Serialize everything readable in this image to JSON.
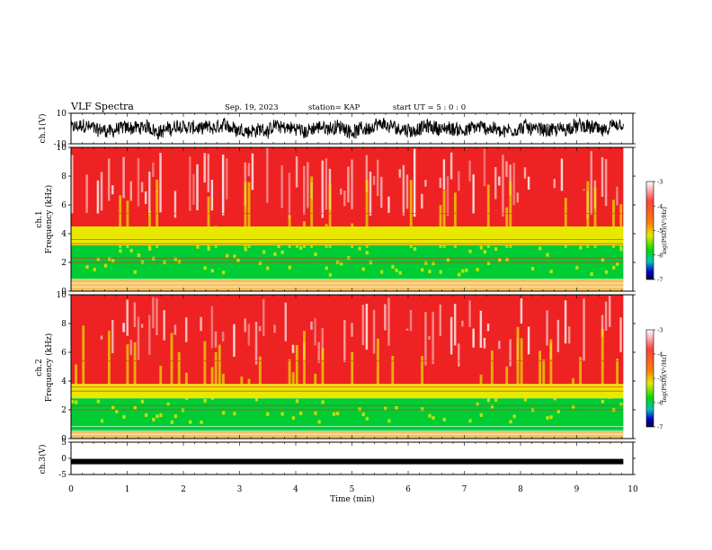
{
  "header": {
    "title": "VLF Spectra",
    "date": "Sep. 19, 2023",
    "station": "station= KAP",
    "start": "start  UT =   5 : 0  : 0"
  },
  "colors": {
    "spec_low": "#00cc33",
    "spec_mid": "#e8e800",
    "spec_high": "#ee2222",
    "spec_sat": "#ffffff",
    "waveform": "#000000"
  },
  "chart_data": [
    {
      "type": "line",
      "name": "ch1-waveform",
      "ylabel": "ch.1(V)",
      "ylim": [
        -10,
        10
      ],
      "yticks": [
        "10",
        "-10"
      ],
      "xlim": [
        0,
        10
      ],
      "note_values": "noisy waveform, amplitude approx +/-5 V"
    },
    {
      "type": "heatmap",
      "name": "ch1-spectrogram",
      "ylabel_top": "ch.1",
      "ylabel": "Frequency  (kHz)",
      "ylim": [
        0,
        10
      ],
      "yticks": [
        "0",
        "2",
        "4",
        "6",
        "8",
        "10"
      ],
      "xlim": [
        0,
        10
      ],
      "bands": [
        {
          "from_khz": 0.0,
          "to_khz": 0.8,
          "level": "mixed"
        },
        {
          "from_khz": 0.8,
          "to_khz": 3.2,
          "level": "green"
        },
        {
          "from_khz": 3.2,
          "to_khz": 4.5,
          "level": "yellow"
        },
        {
          "from_khz": 4.5,
          "to_khz": 10.0,
          "level": "red"
        }
      ],
      "colorbar": {
        "label": "log(PSD)(V²/Hz)",
        "ticks": [
          "-3",
          "-4",
          "-5",
          "-6",
          "-7"
        ],
        "range": [
          -7,
          -3
        ]
      }
    },
    {
      "type": "heatmap",
      "name": "ch2-spectrogram",
      "ylabel_top": "ch.2",
      "ylabel": "Frequency  (kHz)",
      "ylim": [
        0,
        10
      ],
      "yticks": [
        "0",
        "2",
        "4",
        "6",
        "8",
        "10"
      ],
      "xlim": [
        0,
        10
      ],
      "bands": [
        {
          "from_khz": 0.0,
          "to_khz": 0.5,
          "level": "mixed"
        },
        {
          "from_khz": 0.5,
          "to_khz": 2.8,
          "level": "green"
        },
        {
          "from_khz": 2.8,
          "to_khz": 3.8,
          "level": "yellow"
        },
        {
          "from_khz": 3.8,
          "to_khz": 10.0,
          "level": "red"
        }
      ],
      "colorbar": {
        "label": "log(PSD)(V²/Hz)",
        "ticks": [
          "-3",
          "-4",
          "-5",
          "-6",
          "-7"
        ],
        "range": [
          -7,
          -3
        ]
      }
    },
    {
      "type": "line",
      "name": "ch3-waveform",
      "ylabel": "ch.3(V)",
      "ylim": [
        -5,
        5
      ],
      "yticks": [
        "5",
        "0",
        "-5"
      ],
      "xlim": [
        0,
        10
      ],
      "note_values": "thick flat trace at approx -1 V"
    }
  ],
  "xaxis": {
    "label": "Time  (min)",
    "ticks": [
      "0",
      "1",
      "2",
      "3",
      "4",
      "5",
      "6",
      "7",
      "8",
      "9",
      "10"
    ]
  }
}
